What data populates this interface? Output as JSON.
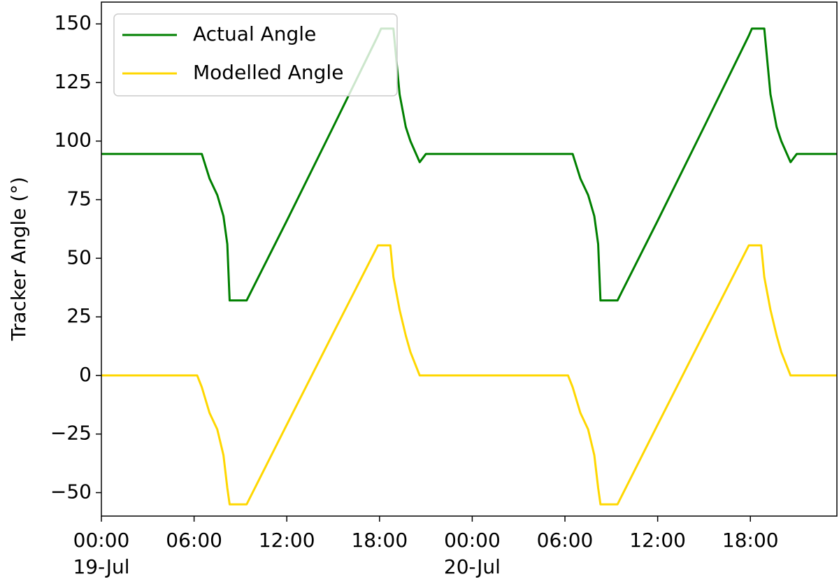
{
  "chart_data": {
    "type": "line",
    "y_label": "Tracker Angle (°)",
    "x": [
      0,
      6.2,
      6.5,
      7.0,
      7.5,
      7.9,
      8.15,
      8.3,
      9.4,
      12,
      15,
      17.9,
      18.1,
      18.7,
      18.9,
      19.3,
      19.7,
      20.0,
      20.6,
      21.0,
      30.2,
      30.5,
      31.0,
      31.5,
      31.9,
      32.15,
      32.3,
      33.4,
      36,
      39,
      41.9,
      42.1,
      42.7,
      42.9,
      43.3,
      43.7,
      44.0,
      44.6,
      45.0,
      47.6
    ],
    "series": [
      {
        "name": "Actual Angle",
        "color": "#008000",
        "values": [
          94.5,
          94.5,
          94.5,
          84,
          77,
          68,
          56,
          32,
          32,
          66,
          106,
          145,
          148,
          148,
          148,
          120,
          106,
          100,
          91,
          94.5,
          94.5,
          94.5,
          84,
          77,
          68,
          56,
          32,
          32,
          66,
          106,
          145,
          148,
          148,
          148,
          120,
          106,
          100,
          91,
          94.5,
          94.5
        ]
      },
      {
        "name": "Modelled Angle",
        "color": "#ffd700",
        "values": [
          0,
          0,
          -5,
          -16,
          -23,
          -34,
          -48,
          -55,
          -55,
          -21,
          18,
          55.5,
          55.5,
          55.5,
          42,
          28,
          17,
          10,
          0,
          0,
          0,
          -5,
          -16,
          -23,
          -34,
          -48,
          -55,
          -55,
          -21,
          18,
          55.5,
          55.5,
          55.5,
          42,
          28,
          17,
          10,
          0,
          0,
          0
        ]
      }
    ],
    "xlim": [
      0,
      47.6
    ],
    "xticks": [
      {
        "value": 0,
        "label": "00:00",
        "date": "19-Jul"
      },
      {
        "value": 6,
        "label": "06:00"
      },
      {
        "value": 12,
        "label": "12:00"
      },
      {
        "value": 18,
        "label": "18:00"
      },
      {
        "value": 24,
        "label": "00:00",
        "date": "20-Jul"
      },
      {
        "value": 30,
        "label": "06:00"
      },
      {
        "value": 36,
        "label": "12:00"
      },
      {
        "value": 42,
        "label": "18:00"
      }
    ],
    "ylim": [
      -60,
      159.3
    ],
    "yticks": [
      {
        "value": -50,
        "label": "−50"
      },
      {
        "value": -25,
        "label": "−25"
      },
      0,
      25,
      50,
      75,
      100,
      125,
      150
    ],
    "legend": "upper left",
    "grid": false
  }
}
